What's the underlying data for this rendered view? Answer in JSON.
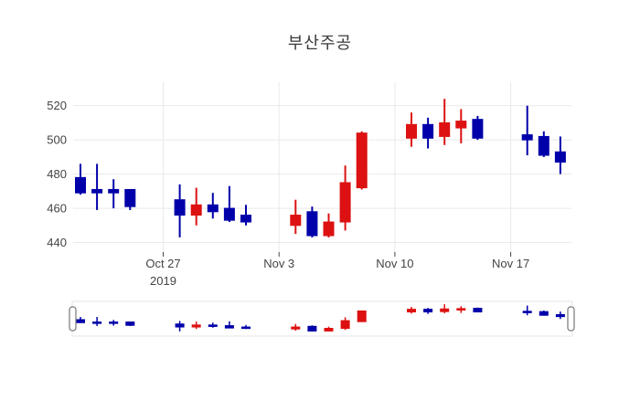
{
  "chart_data": {
    "type": "candlestick",
    "title": "부산주공",
    "xlabel": "",
    "ylabel": "",
    "grid": true,
    "legend": "none",
    "ylim": [
      436,
      530
    ],
    "y_ticks": [
      {
        "value": 440,
        "label": "440"
      },
      {
        "value": 460,
        "label": "460"
      },
      {
        "value": 480,
        "label": "480"
      },
      {
        "value": 500,
        "label": "500"
      },
      {
        "value": 520,
        "label": "520"
      }
    ],
    "x_ticks": [
      {
        "day": 5,
        "label": "Oct 27",
        "sublabel": "2019"
      },
      {
        "day": 12,
        "label": "Nov 3",
        "sublabel": ""
      },
      {
        "day": 19,
        "label": "Nov 10",
        "sublabel": ""
      },
      {
        "day": 26,
        "label": "Nov 17",
        "sublabel": ""
      }
    ],
    "candles": [
      {
        "date": "Oct 22",
        "day": 0,
        "open": 478,
        "high": 486,
        "low": 468,
        "close": 469
      },
      {
        "date": "Oct 23",
        "day": 1,
        "open": 471,
        "high": 486,
        "low": 459,
        "close": 469
      },
      {
        "date": "Oct 24",
        "day": 2,
        "open": 471,
        "high": 477,
        "low": 460,
        "close": 469
      },
      {
        "date": "Oct 25",
        "day": 3,
        "open": 471,
        "high": 471,
        "low": 459,
        "close": 461
      },
      {
        "date": "Oct 28",
        "day": 6,
        "open": 465,
        "high": 474,
        "low": 443,
        "close": 456
      },
      {
        "date": "Oct 29",
        "day": 7,
        "open": 456,
        "high": 472,
        "low": 450,
        "close": 462
      },
      {
        "date": "Oct 30",
        "day": 8,
        "open": 462,
        "high": 469,
        "low": 454,
        "close": 458
      },
      {
        "date": "Oct 31",
        "day": 9,
        "open": 460,
        "high": 473,
        "low": 452,
        "close": 453
      },
      {
        "date": "Nov 1",
        "day": 10,
        "open": 456,
        "high": 462,
        "low": 450,
        "close": 452
      },
      {
        "date": "Nov 4",
        "day": 13,
        "open": 450,
        "high": 465,
        "low": 445,
        "close": 456
      },
      {
        "date": "Nov 5",
        "day": 14,
        "open": 458,
        "high": 461,
        "low": 443,
        "close": 444
      },
      {
        "date": "Nov 6",
        "day": 15,
        "open": 444,
        "high": 457,
        "low": 443,
        "close": 452
      },
      {
        "date": "Nov 7",
        "day": 16,
        "open": 452,
        "high": 485,
        "low": 447,
        "close": 475
      },
      {
        "date": "Nov 8",
        "day": 17,
        "open": 472,
        "high": 505,
        "low": 471,
        "close": 504
      },
      {
        "date": "Nov 11",
        "day": 20,
        "open": 501,
        "high": 516,
        "low": 496,
        "close": 509
      },
      {
        "date": "Nov 12",
        "day": 21,
        "open": 509,
        "high": 513,
        "low": 495,
        "close": 501
      },
      {
        "date": "Nov 13",
        "day": 22,
        "open": 502,
        "high": 524,
        "low": 497,
        "close": 510
      },
      {
        "date": "Nov 14",
        "day": 23,
        "open": 507,
        "high": 518,
        "low": 498,
        "close": 511
      },
      {
        "date": "Nov 15",
        "day": 24,
        "open": 512,
        "high": 514,
        "low": 500,
        "close": 501
      },
      {
        "date": "Nov 18",
        "day": 27,
        "open": 503,
        "high": 520,
        "low": 491,
        "close": 500
      },
      {
        "date": "Nov 19",
        "day": 28,
        "open": 502,
        "high": 505,
        "low": 490,
        "close": 491
      },
      {
        "date": "Nov 20",
        "day": 29,
        "open": 493,
        "high": 502,
        "low": 480,
        "close": 487
      }
    ],
    "colors": {
      "increasing": "#dd1111",
      "decreasing": "#0000aa",
      "grid": "#e9e9e9",
      "tick_text": "#444444",
      "tick_mark": "#444444",
      "slider_handle_border": "#777777",
      "slider_border": "#e6e6e6"
    },
    "rangeslider": {
      "visible": true,
      "ylim": [
        437,
        527
      ]
    }
  }
}
